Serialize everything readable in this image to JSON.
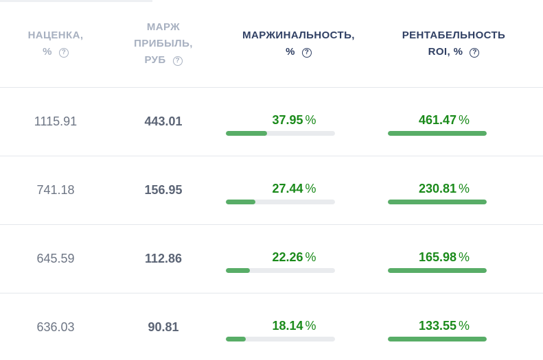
{
  "header": {
    "markup": {
      "line1": "НАЦЕНКА,",
      "line2": "%",
      "help_icon": "?"
    },
    "profit": {
      "line1": "МАРЖ",
      "line2": "ПРИБЫЛЬ,",
      "line3": "РУБ",
      "help_icon": "?"
    },
    "margin": {
      "line1": "МАРЖИНАЛЬНОСТЬ,",
      "line2": "%",
      "help_icon": "?"
    },
    "roi": {
      "line1": "РЕНТАБЕЛЬНОСТЬ",
      "line2": "ROI, %",
      "help_icon": "?"
    }
  },
  "icons": {
    "help": "question-circle-icon"
  },
  "colors": {
    "header_muted": "#a7b0c0",
    "header_dark": "#2f3f63",
    "value_green": "#1a8a1a",
    "bar_fill": "#58ad67",
    "bar_track": "#e9ebee"
  },
  "rows": [
    {
      "markup": "1115.91",
      "profit": "443.01",
      "margin": "37.95",
      "margin_unit": "%",
      "margin_fill": 0.38,
      "roi": "461.47",
      "roi_unit": "%",
      "roi_fill": 1.0
    },
    {
      "markup": "741.18",
      "profit": "156.95",
      "margin": "27.44",
      "margin_unit": "%",
      "margin_fill": 0.27,
      "roi": "230.81",
      "roi_unit": "%",
      "roi_fill": 1.0
    },
    {
      "markup": "645.59",
      "profit": "112.86",
      "margin": "22.26",
      "margin_unit": "%",
      "margin_fill": 0.22,
      "roi": "165.98",
      "roi_unit": "%",
      "roi_fill": 1.0
    },
    {
      "markup": "636.03",
      "profit": "90.81",
      "margin": "18.14",
      "margin_unit": "%",
      "margin_fill": 0.18,
      "roi": "133.55",
      "roi_unit": "%",
      "roi_fill": 1.0
    }
  ]
}
